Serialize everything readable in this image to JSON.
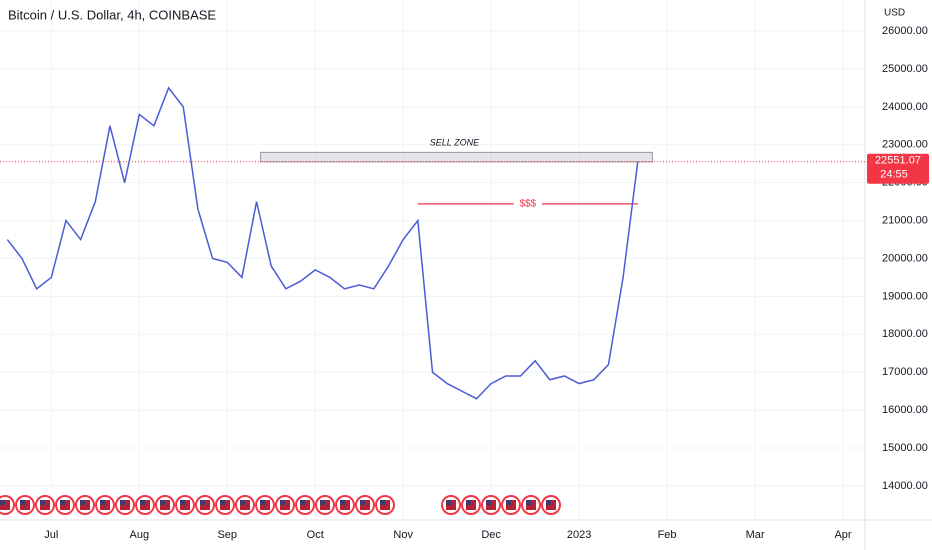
{
  "chart_data": {
    "type": "line",
    "title": "Bitcoin / U.S. Dollar, 4h, COINBASE",
    "y_unit": "USD",
    "categories": [
      null,
      null,
      null,
      "Jul",
      null,
      null,
      null,
      null,
      null,
      "Aug",
      null,
      null,
      null,
      null,
      null,
      "Sep",
      null,
      null,
      null,
      null,
      null,
      "Oct",
      null,
      null,
      null,
      null,
      null,
      "Nov",
      null,
      null,
      null,
      null,
      null,
      "Dec",
      null,
      null,
      null,
      null,
      null,
      "2023",
      null,
      null,
      null,
      null,
      null,
      "Feb",
      null,
      null,
      null,
      null,
      null,
      "Mar",
      null,
      null,
      null,
      null,
      null,
      "Apr",
      null
    ],
    "series": [
      {
        "name": "BTCUSD",
        "color": "#4a5bd6",
        "values": [
          20500,
          20000,
          19200,
          19500,
          21000,
          20500,
          21500,
          23500,
          22000,
          23800,
          23500,
          24500,
          24000,
          21300,
          20000,
          19900,
          19500,
          21500,
          19800,
          19200,
          19400,
          19700,
          19500,
          19200,
          19300,
          19200,
          19800,
          20500,
          21000,
          17000,
          16700,
          16500,
          16300,
          16700,
          16900,
          16900,
          17300,
          16800,
          16900,
          16700,
          16800,
          17200,
          19500,
          22551,
          null,
          null,
          null,
          null,
          null,
          null,
          null,
          null,
          null,
          null,
          null,
          null,
          null,
          null,
          null
        ]
      }
    ],
    "ylim": [
      13100,
      26820
    ],
    "yticks": [
      {
        "value": 14000,
        "label": "14000.00"
      },
      {
        "value": 15000,
        "label": "15000.00"
      },
      {
        "value": 16000,
        "label": "16000.00"
      },
      {
        "value": 17000,
        "label": "17000.00"
      },
      {
        "value": 18000,
        "label": "18000.00"
      },
      {
        "value": 19000,
        "label": "19000.00"
      },
      {
        "value": 20000,
        "label": "20000.00"
      },
      {
        "value": 21000,
        "label": "21000.00"
      },
      {
        "value": 22000,
        "label": "22000.00"
      },
      {
        "value": 23000,
        "label": "23000.00"
      },
      {
        "value": 24000,
        "label": "24000.00"
      },
      {
        "value": 25000,
        "label": "25000.00"
      },
      {
        "value": 26000,
        "label": "26000.00"
      }
    ],
    "grid": true,
    "last_price": 22551.07,
    "countdown": "24:55",
    "sell_zone": {
      "label": "SELL ZONE",
      "from": 17,
      "to": 44,
      "range": [
        22550,
        22800
      ]
    },
    "liquidity_line": {
      "label": "$$$",
      "from": 28,
      "to": 43,
      "value": 21440
    }
  }
}
